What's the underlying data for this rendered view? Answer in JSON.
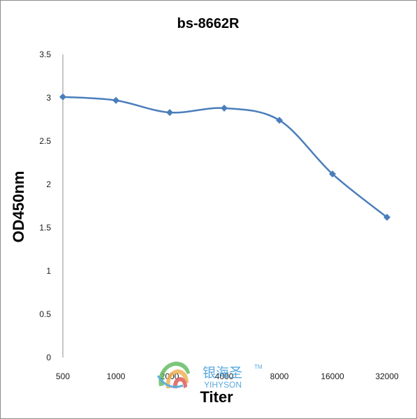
{
  "chart_data": {
    "type": "line",
    "title": "bs-8662R",
    "xlabel": "Titer",
    "ylabel": "OD450nm",
    "categories": [
      "500",
      "1000",
      "2000",
      "4000",
      "8000",
      "16000",
      "32000"
    ],
    "series": [
      {
        "values": [
          3.01,
          2.97,
          2.83,
          2.88,
          2.74,
          2.12,
          1.62
        ]
      }
    ],
    "ylim": [
      0,
      3.5
    ],
    "yticks": [
      "0",
      "0.5",
      "1",
      "1.5",
      "2",
      "2.5",
      "3",
      "3.5"
    ],
    "grid": false,
    "legend": "none",
    "colors": {
      "line": "#4a7ebb",
      "axis": "#8c8c8c"
    }
  },
  "watermark": {
    "chinese": "银海圣",
    "english": "YIHYSON",
    "tm": "TM"
  }
}
